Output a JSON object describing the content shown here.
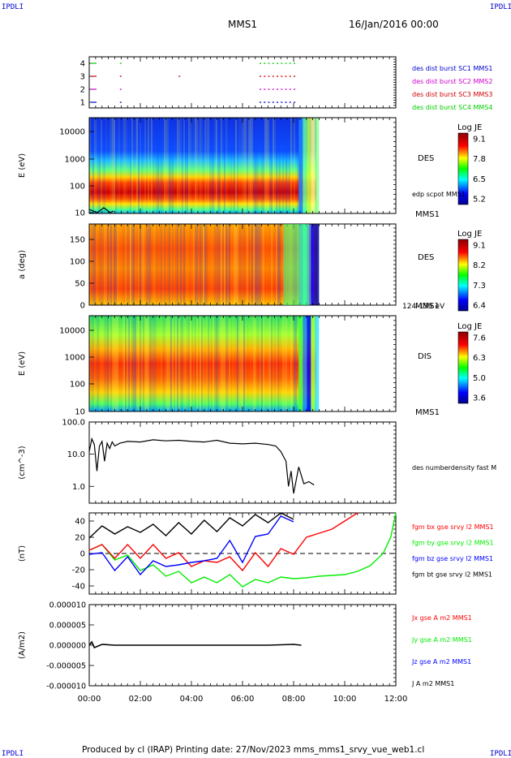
{
  "header": {
    "corner_left": "IPDLI",
    "corner_right": "IPDLI",
    "title": "MMS1",
    "date": "16/Jan/2016 00:00",
    "corner_bottom_left": "IPDLI",
    "corner_bottom_right": "IPDLI"
  },
  "footer": {
    "text": "Produced by cl (IRAP)   Printing date: 27/Nov/2023   mms_mms1_srvy_vue_web1.cl"
  },
  "colors": {
    "red": "#ff0000",
    "green": "#00ee00",
    "blue": "#0000ff",
    "magenta": "#ee00ee",
    "black": "#000000"
  },
  "chart_data": [
    {
      "id": "burst",
      "type": "scatter",
      "yticks": [
        "1",
        "2",
        "3",
        "4"
      ],
      "series": [
        {
          "name": "des dist burst SC1 MMS1",
          "color": "#0000cc",
          "y": 1,
          "x": [
            "01:12",
            "06:40",
            "06:50",
            "07:00",
            "07:10",
            "07:20",
            "07:30",
            "07:40",
            "07:50",
            "08:00"
          ]
        },
        {
          "name": "des dist burst SC2 MMS2",
          "color": "#cc00cc",
          "y": 2,
          "x": [
            "01:12",
            "06:40",
            "06:50",
            "07:00",
            "07:10",
            "07:20",
            "07:30",
            "07:40",
            "07:50",
            "08:00"
          ]
        },
        {
          "name": "des dist burst SC3 MMS3",
          "color": "#cc0000",
          "y": 3,
          "x": [
            "01:12",
            "03:30",
            "06:40",
            "06:50",
            "07:00",
            "07:10",
            "07:20",
            "07:30",
            "07:40",
            "07:50",
            "08:00"
          ]
        },
        {
          "name": "des dist burst SC4 MMS4",
          "color": "#00cc00",
          "y": 4,
          "x": [
            "01:12",
            "06:40",
            "06:50",
            "07:00",
            "07:10",
            "07:20",
            "07:30",
            "07:40",
            "07:50",
            "08:00"
          ]
        }
      ]
    },
    {
      "id": "des_energy",
      "type": "heatmap",
      "ylabel": "E (eV)",
      "yticks": [
        "10",
        "100",
        "1000",
        "10000"
      ],
      "label": "DES",
      "sublabel": "edp scpot MMS1",
      "sc_label": "MMS1",
      "colorbar": {
        "title": "Log JE",
        "ticks": [
          "9.1",
          "7.8",
          "6.5",
          "5.2"
        ]
      }
    },
    {
      "id": "des_pitch",
      "type": "heatmap",
      "ylabel": "a (deg)",
      "yticks": [
        "0",
        "50",
        "100",
        "150"
      ],
      "label": "DES",
      "sublabel": "124-159 eV",
      "sc_label": "MMS1",
      "colorbar": {
        "title": "Log JE",
        "ticks": [
          "9.1",
          "8.2",
          "7.3",
          "6.4"
        ]
      }
    },
    {
      "id": "dis_energy",
      "type": "heatmap",
      "ylabel": "E (eV)",
      "yticks": [
        "10",
        "100",
        "1000",
        "10000"
      ],
      "label": "DIS",
      "sc_label": "MMS1",
      "colorbar": {
        "title": "Log JE",
        "ticks": [
          "7.6",
          "6.3",
          "5.0",
          "3.6"
        ]
      }
    },
    {
      "id": "density",
      "type": "line",
      "ylabel": "(cm^-3)",
      "yticks": [
        "1.0",
        "10.0",
        "100.0"
      ],
      "ylim": [
        0.3,
        100
      ],
      "series": [
        {
          "name": "des numberdensity fast M",
          "color": "#000000",
          "x": [
            0,
            0.1,
            0.2,
            0.3,
            0.4,
            0.5,
            0.6,
            0.7,
            0.8,
            0.9,
            1.0,
            1.2,
            1.5,
            2.0,
            2.5,
            3.0,
            3.5,
            4.0,
            4.5,
            5.0,
            5.5,
            6.0,
            6.5,
            7.0,
            7.3,
            7.5,
            7.7,
            7.8,
            7.9,
            8.0,
            8.2,
            8.4,
            8.6,
            8.8
          ],
          "values": [
            12,
            30,
            20,
            3,
            18,
            25,
            6,
            22,
            15,
            24,
            18,
            22,
            25,
            24,
            28,
            26,
            27,
            25,
            24,
            27,
            22,
            21,
            22,
            20,
            18,
            12,
            6,
            1,
            3,
            0.6,
            4,
            1.2,
            1.4,
            1.1
          ]
        }
      ]
    },
    {
      "id": "magnetic",
      "type": "line",
      "ylabel": "(nT)",
      "yticks": [
        "-40",
        "-20",
        "0",
        "20",
        "40"
      ],
      "ylim": [
        -50,
        50
      ],
      "series": [
        {
          "name": "fgm bx gse srvy l2 MMS1",
          "color": "#ff0000",
          "x": [
            0,
            0.5,
            1,
            1.5,
            2,
            2.5,
            3,
            3.5,
            4,
            4.5,
            5,
            5.5,
            6,
            6.5,
            7,
            7.5,
            8,
            8.5,
            9,
            9.5,
            10,
            10.5
          ],
          "values": [
            10,
            5,
            0,
            5,
            0,
            5,
            0,
            -5,
            -10,
            -15,
            -5,
            -10,
            -15,
            -5,
            -10,
            0,
            5,
            20,
            25,
            30,
            40,
            52
          ]
        },
        {
          "name": "fgm by gse srvy l2 MMS1",
          "color": "#00ee00",
          "x": [
            0,
            0.5,
            1,
            1.5,
            2,
            2.5,
            3,
            3.5,
            4,
            4.5,
            5,
            5.5,
            6,
            6.5,
            7,
            7.5,
            8,
            8.5,
            9,
            9.5,
            10,
            10.5,
            11,
            11.5,
            11.8,
            12
          ],
          "values": [
            10,
            5,
            -2,
            -8,
            -15,
            -20,
            -22,
            -28,
            -30,
            -35,
            -30,
            -32,
            -35,
            -38,
            -30,
            -35,
            -25,
            -30,
            -28,
            -27,
            -26,
            -22,
            -15,
            0,
            20,
            50
          ]
        },
        {
          "name": "fgm bz gse srvy l2 MMS1",
          "color": "#0000ff",
          "x": [
            0,
            0.5,
            1,
            1.5,
            2,
            2.5,
            3,
            3.5,
            4,
            4.5,
            5,
            5.5,
            6,
            6.5,
            7,
            7.5,
            8
          ],
          "values": [
            5,
            -5,
            -15,
            -10,
            -20,
            -15,
            -10,
            -20,
            -5,
            -15,
            0,
            10,
            -5,
            15,
            30,
            40,
            45
          ]
        },
        {
          "name": "fgm bt gse srvy l2 MMS1",
          "color": "#000000",
          "x": [
            0,
            0.5,
            1,
            1.5,
            2,
            2.5,
            3,
            3.5,
            4,
            4.5,
            5,
            5.5,
            6,
            6.5,
            7,
            7.5,
            8
          ],
          "values": [
            25,
            28,
            30,
            27,
            32,
            30,
            28,
            32,
            30,
            35,
            33,
            38,
            40,
            42,
            44,
            46,
            48
          ]
        }
      ]
    },
    {
      "id": "current",
      "type": "line",
      "ylabel": "(A/m2)",
      "yticks": [
        "0.000010",
        "0.000005",
        "0.000000",
        "-0.000005",
        "-0.000010"
      ],
      "ylim": [
        -1e-05,
        1e-05
      ],
      "xticks": [
        "00:00",
        "02:00",
        "04:00",
        "06:00",
        "08:00",
        "10:00",
        "12:00"
      ],
      "series": [
        {
          "name": "Jx gse A m2 MMS1",
          "color": "#ff0000"
        },
        {
          "name": "Jy gse A m2 MMS1",
          "color": "#00ee00"
        },
        {
          "name": "Jz gse A m2 MMS1",
          "color": "#0000ff"
        },
        {
          "name": "J A m2 MMS1",
          "color": "#000000"
        }
      ],
      "x": [
        0,
        0.1,
        0.2,
        0.5,
        1,
        2,
        3,
        4,
        5,
        6,
        7,
        8,
        8.3
      ],
      "values": [
        0,
        8e-07,
        -6e-07,
        2e-07,
        0,
        0,
        0,
        0,
        0,
        0,
        0,
        2e-07,
        0
      ]
    }
  ]
}
